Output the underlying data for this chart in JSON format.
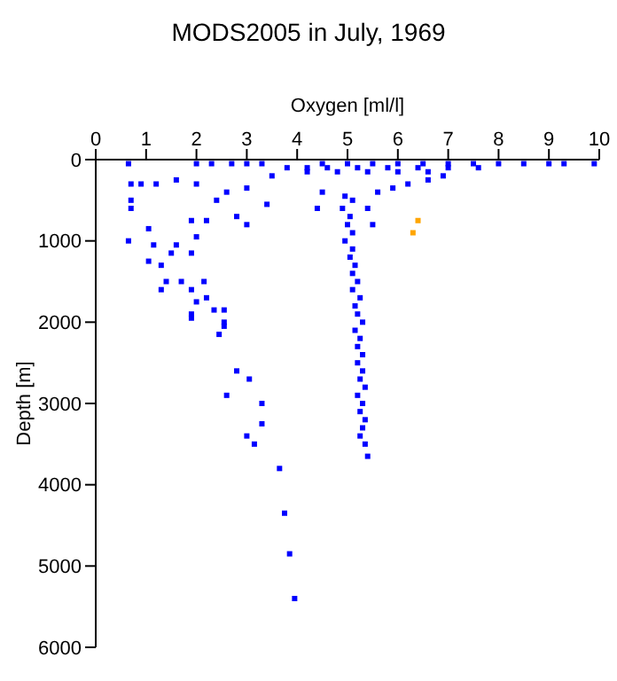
{
  "chart_data": {
    "type": "scatter",
    "title": "MODS2005 in July, 1969",
    "xlabel": "Oxygen [ml/l]",
    "ylabel": "Depth [m]",
    "xlim": [
      0,
      10
    ],
    "xticks": [
      0,
      1,
      2,
      3,
      4,
      5,
      6,
      7,
      8,
      9,
      10
    ],
    "ylim": [
      6000,
      0
    ],
    "yticks": [
      0,
      1000,
      2000,
      3000,
      4000,
      5000,
      6000
    ],
    "grid": false,
    "legend": false,
    "marker": "square",
    "series": [
      {
        "color": "#0000ff",
        "x": [
          0.65,
          2.0,
          2.3,
          2.7,
          3.0,
          3.3,
          4.5,
          5.0,
          5.5,
          6.0,
          6.5,
          7.0,
          7.5,
          8.0,
          8.5,
          9.0,
          9.3,
          9.9,
          4.6,
          5.2,
          5.8,
          6.4,
          7.0,
          7.6,
          4.2,
          4.8,
          5.4,
          6.0,
          6.6,
          0.7,
          0.9,
          0.7,
          0.7,
          1.2,
          1.6,
          2.0,
          2.6,
          3.0,
          3.5,
          3.8,
          4.2,
          4.5,
          4.4,
          3.4,
          2.8,
          2.4,
          2.2,
          3.0,
          1.9,
          1.05,
          1.15,
          1.05,
          1.3,
          1.5,
          1.6,
          1.9,
          2.0,
          1.4,
          1.3,
          1.7,
          1.9,
          2.15,
          0.65,
          2.2,
          2.0,
          2.55,
          2.35,
          1.9,
          2.55,
          1.9,
          2.45,
          2.55,
          2.8,
          3.05,
          2.6,
          3.3,
          3.3,
          3.0,
          3.15,
          3.65,
          3.75,
          3.85,
          3.95,
          4.95,
          5.1,
          4.9,
          5.05,
          5.0,
          5.1,
          4.95,
          5.1,
          5.05,
          5.15,
          5.1,
          5.2,
          5.1,
          5.25,
          5.15,
          5.2,
          5.3,
          5.15,
          5.25,
          5.2,
          5.3,
          5.2,
          5.3,
          5.25,
          5.35,
          5.2,
          5.3,
          5.25,
          5.35,
          5.3,
          5.25,
          5.35,
          5.4,
          5.6,
          5.9,
          6.2,
          6.6,
          6.9,
          5.4,
          5.5
        ],
        "values": [
          50,
          50,
          50,
          50,
          50,
          50,
          50,
          50,
          50,
          50,
          50,
          50,
          50,
          50,
          50,
          50,
          50,
          50,
          100,
          100,
          100,
          100,
          100,
          100,
          150,
          150,
          150,
          150,
          150,
          300,
          300,
          500,
          600,
          300,
          250,
          300,
          400,
          350,
          200,
          100,
          100,
          400,
          600,
          550,
          700,
          500,
          750,
          800,
          750,
          850,
          1050,
          1250,
          1300,
          1150,
          1050,
          1150,
          950,
          1500,
          1600,
          1500,
          1600,
          1500,
          1000,
          1700,
          1750,
          1850,
          1850,
          1900,
          2000,
          1950,
          2150,
          2050,
          2600,
          2700,
          2900,
          3000,
          3250,
          3400,
          3500,
          3800,
          4350,
          4850,
          5400,
          450,
          500,
          600,
          700,
          800,
          900,
          1000,
          1100,
          1200,
          1300,
          1400,
          1500,
          1600,
          1700,
          1800,
          1900,
          2000,
          2100,
          2200,
          2300,
          2400,
          2500,
          2600,
          2700,
          2800,
          2900,
          3000,
          3100,
          3200,
          3300,
          3400,
          3500,
          3650,
          400,
          350,
          300,
          250,
          200,
          600,
          800
        ]
      },
      {
        "color": "#ffa500",
        "x": [
          6.4,
          6.3
        ],
        "values": [
          750,
          900
        ]
      }
    ]
  }
}
